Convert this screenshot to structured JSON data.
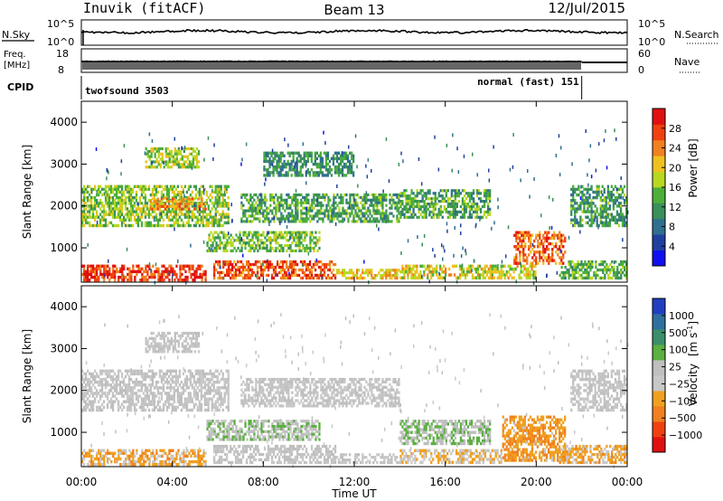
{
  "header": {
    "station": "Inuvik (fitACF)",
    "beam": "Beam 13",
    "date": "12/Jul/2015"
  },
  "noise_panel": {
    "left_label": "N.Sky",
    "right_label": "N.Search",
    "left_ticks": [
      "10^5",
      "10^0"
    ],
    "right_ticks": [
      "10^5",
      "10^0"
    ]
  },
  "freq_panel": {
    "left_label_1": "Freq.",
    "left_label_2": "[MHz]",
    "right_label": "Nave",
    "left_ticks": [
      "18",
      "8"
    ],
    "right_ticks": [
      "60",
      "0"
    ]
  },
  "cpid_panel": {
    "label": "CPID",
    "programs": [
      {
        "name": "twofsound 3503",
        "start_hour": 0.0,
        "end_hour": 22.0
      },
      {
        "name": "normal (fast) 151",
        "start_hour": 22.0,
        "end_hour": 24.0
      }
    ]
  },
  "time_axis": {
    "label": "Time UT",
    "ticks": [
      "00:00",
      "04:00",
      "08:00",
      "12:00",
      "16:00",
      "20:00",
      "00:00"
    ],
    "tick_hours": [
      0,
      4,
      8,
      12,
      16,
      20,
      24
    ]
  },
  "power_panel": {
    "ylabel": "Slant Range [km]",
    "yticks": [
      "1000",
      "2000",
      "3000",
      "4000"
    ],
    "ytick_values": [
      1000,
      2000,
      3000,
      4000
    ],
    "colorbar_label": "Power [dB]",
    "colorbar_ticks": [
      "4",
      "8",
      "12",
      "16",
      "20",
      "24",
      "28"
    ],
    "colors": [
      "#1010f0",
      "#2040a0",
      "#2f6f8f",
      "#3a8f5a",
      "#4caf3a",
      "#b8d820",
      "#f0c020",
      "#f08020",
      "#f04010",
      "#e01010"
    ]
  },
  "velocity_panel": {
    "ylabel": "Slant Range [km]",
    "yticks": [
      "1000",
      "2000",
      "3000",
      "4000"
    ],
    "ytick_values": [
      1000,
      2000,
      3000,
      4000
    ],
    "colorbar_label_main": "Velocity",
    "colorbar_label_units": "[m s",
    "colorbar_label_exp": "-1",
    "colorbar_label_close": "]",
    "colorbar_ticks": [
      "1000",
      "500",
      "100",
      "25",
      "−25",
      "−100",
      "−500",
      "−1000"
    ],
    "colors": [
      "#2040c0",
      "#2f6f9f",
      "#3a8f6a",
      "#5ab040",
      "#bfbfbf",
      "#c8c8c8",
      "#f0a020",
      "#f08020",
      "#f04010",
      "#e01010"
    ]
  },
  "chart_data": [
    {
      "type": "heatmap",
      "title": "Power",
      "xlabel": "Time UT",
      "ylabel": "Slant Range [km]",
      "xlim": [
        0,
        24
      ],
      "ylim": [
        180,
        4500
      ],
      "colorbar": {
        "label": "Power [dB]",
        "range": [
          0,
          30
        ]
      },
      "regions": [
        {
          "t0": 0.0,
          "t1": 5.5,
          "r0": 200,
          "r1": 600,
          "level": 27
        },
        {
          "t0": 5.8,
          "t1": 11.2,
          "r0": 250,
          "r1": 700,
          "level": 26
        },
        {
          "t0": 11.2,
          "t1": 14.0,
          "r0": 250,
          "r1": 500,
          "level": 20
        },
        {
          "t0": 14.0,
          "t1": 20.0,
          "r0": 250,
          "r1": 600,
          "level": 18
        },
        {
          "t0": 19.0,
          "t1": 21.3,
          "r0": 600,
          "r1": 1400,
          "level": 25
        },
        {
          "t0": 0.0,
          "t1": 6.5,
          "r0": 1500,
          "r1": 2500,
          "level": 15
        },
        {
          "t0": 3.0,
          "t1": 5.5,
          "r0": 1900,
          "r1": 2200,
          "level": 22
        },
        {
          "t0": 7.0,
          "t1": 14.0,
          "r0": 1600,
          "r1": 2300,
          "level": 12
        },
        {
          "t0": 2.8,
          "t1": 5.2,
          "r0": 2900,
          "r1": 3400,
          "level": 16
        },
        {
          "t0": 5.5,
          "t1": 10.5,
          "r0": 900,
          "r1": 1400,
          "level": 14
        },
        {
          "t0": 8.0,
          "t1": 12.0,
          "r0": 2700,
          "r1": 3300,
          "level": 10
        },
        {
          "t0": 14.0,
          "t1": 18.0,
          "r0": 1700,
          "r1": 2400,
          "level": 12
        },
        {
          "t0": 21.5,
          "t1": 24.0,
          "r0": 1500,
          "r1": 2500,
          "level": 11
        },
        {
          "t0": 21.0,
          "t1": 24.0,
          "r0": 250,
          "r1": 700,
          "level": 13
        }
      ]
    },
    {
      "type": "heatmap",
      "title": "Velocity",
      "xlabel": "Time UT",
      "ylabel": "Slant Range [km]",
      "xlim": [
        0,
        24
      ],
      "ylim": [
        180,
        4500
      ],
      "colorbar": {
        "label": "Velocity [m s-1]",
        "range": [
          -1000,
          1000
        ]
      },
      "regions": [
        {
          "t0": 0.0,
          "t1": 5.5,
          "r0": 200,
          "r1": 600,
          "level": -300
        },
        {
          "t0": 5.8,
          "t1": 11.2,
          "r0": 250,
          "r1": 700,
          "level": 0
        },
        {
          "t0": 11.2,
          "t1": 14.0,
          "r0": 250,
          "r1": 500,
          "level": 0
        },
        {
          "t0": 14.0,
          "t1": 18.5,
          "r0": 250,
          "r1": 600,
          "level": -200
        },
        {
          "t0": 18.5,
          "t1": 21.3,
          "r0": 300,
          "r1": 1400,
          "level": -400
        },
        {
          "t0": 0.0,
          "t1": 6.5,
          "r0": 1500,
          "r1": 2500,
          "level": 0
        },
        {
          "t0": 7.0,
          "t1": 14.0,
          "r0": 1600,
          "r1": 2300,
          "level": 0
        },
        {
          "t0": 2.8,
          "t1": 5.2,
          "r0": 2900,
          "r1": 3400,
          "level": 0
        },
        {
          "t0": 5.5,
          "t1": 10.5,
          "r0": 800,
          "r1": 1300,
          "level": 150
        },
        {
          "t0": 14.0,
          "t1": 18.0,
          "r0": 700,
          "r1": 1300,
          "level": 200
        },
        {
          "t0": 21.5,
          "t1": 24.0,
          "r0": 1500,
          "r1": 2500,
          "level": 0
        },
        {
          "t0": 21.0,
          "t1": 24.0,
          "r0": 250,
          "r1": 700,
          "level": -300
        }
      ]
    }
  ]
}
